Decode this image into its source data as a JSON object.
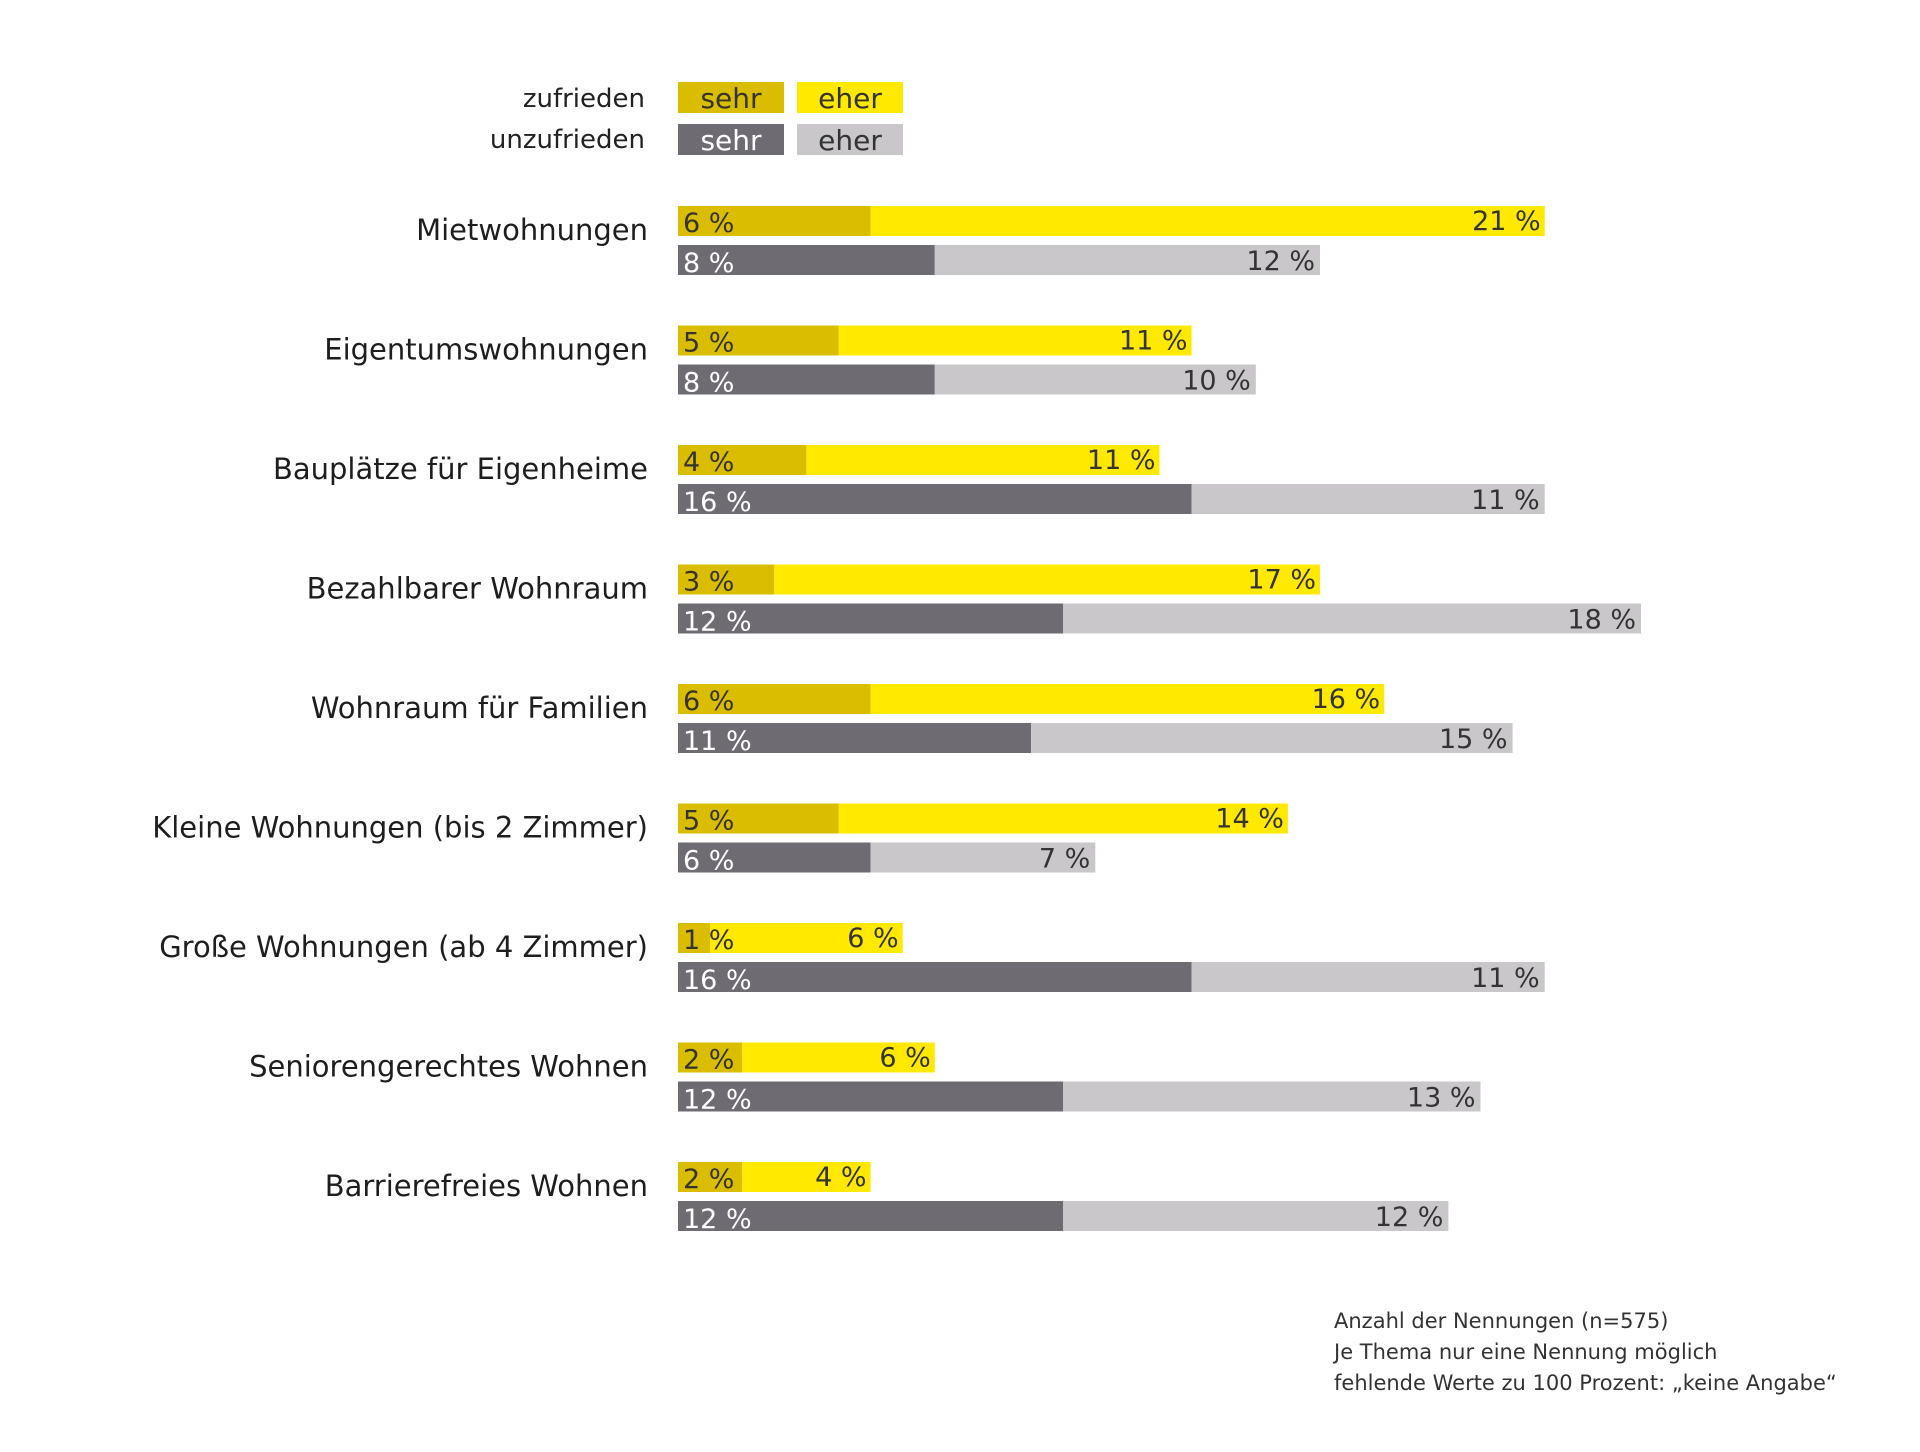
{
  "legend": {
    "rows": [
      {
        "label": "zufrieden",
        "items": [
          {
            "label": "sehr",
            "color": "#dbbd00",
            "text_color": "#333333"
          },
          {
            "label": "eher",
            "color": "#ffe900",
            "text_color": "#333333"
          }
        ]
      },
      {
        "label": "unzufrieden",
        "items": [
          {
            "label": "sehr",
            "color": "#6e6b72",
            "text_color": "#ffffff"
          },
          {
            "label": "eher",
            "color": "#c9c7ca",
            "text_color": "#333333"
          }
        ]
      }
    ]
  },
  "chart_data": {
    "type": "bar",
    "orientation": "horizontal",
    "stacked": true,
    "unit": "%",
    "categories": [
      "Mietwohnungen",
      "Eigentumswohnungen",
      "Bauplätze für Eigenheime",
      "Bezahlbarer Wohnraum",
      "Wohnraum für Familien",
      "Kleine Wohnungen (bis 2 Zimmer)",
      "Große Wohnungen (ab 4 Zimmer)",
      "Seniorengerechtes Wohnen",
      "Barrierefreies Wohnen"
    ],
    "series": [
      {
        "name": "zufrieden sehr",
        "group": "zufrieden",
        "color": "#dbbd00",
        "values": [
          6,
          5,
          4,
          3,
          6,
          5,
          1,
          2,
          2
        ]
      },
      {
        "name": "zufrieden eher",
        "group": "zufrieden",
        "color": "#ffe900",
        "values": [
          21,
          11,
          11,
          17,
          16,
          14,
          6,
          6,
          4
        ]
      },
      {
        "name": "unzufrieden sehr",
        "group": "unzufrieden",
        "color": "#6e6b72",
        "values": [
          8,
          8,
          16,
          12,
          11,
          6,
          16,
          12,
          12
        ]
      },
      {
        "name": "unzufrieden eher",
        "group": "unzufrieden",
        "color": "#c9c7ca",
        "values": [
          12,
          10,
          11,
          18,
          15,
          7,
          11,
          13,
          12
        ]
      }
    ],
    "value_labels": {
      "zufrieden_sehr": [
        "6 %",
        "5 %",
        "4 %",
        "3 %",
        "6 %",
        "5 %",
        "1 %",
        "2 %",
        "2 %"
      ],
      "zufrieden_eher": [
        "21 %",
        "11 %",
        "11 %",
        "17 %",
        "16 %",
        "14 %",
        "6 %",
        "6 %",
        "4 %"
      ],
      "unzufrieden_sehr": [
        "8 %",
        "8 %",
        "16 %",
        "12 %",
        "11 %",
        "6 %",
        "16 %",
        "12 %",
        "12 %"
      ],
      "unzufrieden_eher": [
        "12 %",
        "10 %",
        "11 %",
        "18 %",
        "15 %",
        "7 %",
        "11 %",
        "13 %",
        "12 %"
      ]
    },
    "grid": false
  },
  "notes": [
    "Anzahl der Nennungen (n=575)",
    "Je Thema nur eine Nennung möglich",
    "fehlende Werte zu 100 Prozent: „keine Angabe“"
  ]
}
